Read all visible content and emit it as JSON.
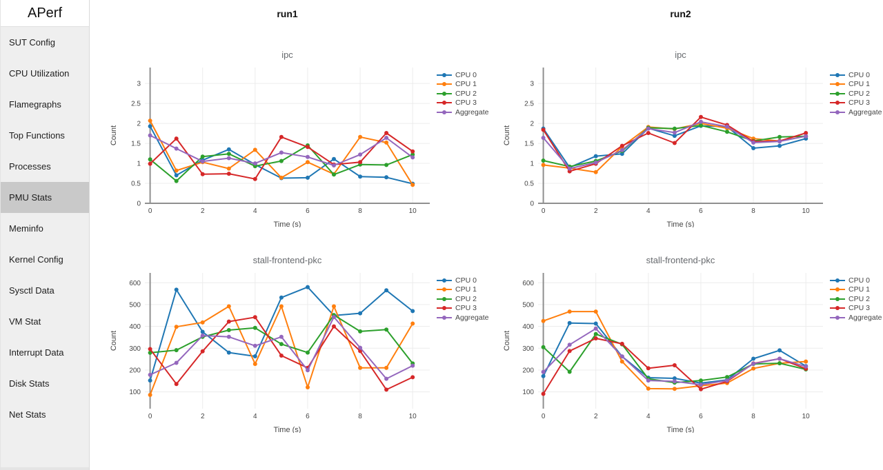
{
  "app": {
    "title": "APerf"
  },
  "sidebar": {
    "items": [
      {
        "label": "SUT Config",
        "selected": false
      },
      {
        "label": "CPU Utilization",
        "selected": false
      },
      {
        "label": "Flamegraphs",
        "selected": false
      },
      {
        "label": "Top Functions",
        "selected": false
      },
      {
        "label": "Processes",
        "selected": false
      },
      {
        "label": "PMU Stats",
        "selected": true
      },
      {
        "label": "Meminfo",
        "selected": false
      },
      {
        "label": "Kernel Config",
        "selected": false
      },
      {
        "label": "Sysctl Data",
        "selected": false
      },
      {
        "label": "VM Stat",
        "selected": false
      },
      {
        "label": "Interrupt Data",
        "selected": false
      },
      {
        "label": "Disk Stats",
        "selected": false
      },
      {
        "label": "Net Stats",
        "selected": false
      }
    ]
  },
  "columns": [
    "run1",
    "run2"
  ],
  "palette": {
    "cpu0": "#1f77b4",
    "cpu1": "#ff7f0e",
    "cpu2": "#2ca02c",
    "cpu3": "#d62728",
    "aggregate": "#9467bd"
  },
  "chart_style": {
    "grid_color": "#ececec",
    "zeroline_color": "#8f8f8f",
    "tick_color": "#444444",
    "title_color": "#66696d"
  },
  "chart_data": [
    {
      "type": "line",
      "run": "run1",
      "title": "ipc",
      "xlabel": "Time (s)",
      "ylabel": "Count",
      "x": [
        0,
        1,
        2,
        3,
        4,
        5,
        6,
        7,
        8,
        9,
        10
      ],
      "xticks": [
        0,
        2,
        4,
        6,
        8,
        10
      ],
      "yticks": [
        0,
        0.5,
        1,
        1.5,
        2,
        2.5,
        3
      ],
      "yrange": [
        0,
        3.4
      ],
      "x_zeroline": true,
      "y_zeroline": true,
      "legend_position": "right",
      "series": [
        {
          "name": "CPU 0",
          "color": "#1f77b4",
          "values": [
            1.93,
            0.7,
            1.08,
            1.35,
            0.97,
            0.63,
            0.64,
            1.11,
            0.67,
            0.65,
            0.49
          ]
        },
        {
          "name": "CPU 1",
          "color": "#ff7f0e",
          "values": [
            2.07,
            0.82,
            1.03,
            0.87,
            1.34,
            0.64,
            1.03,
            0.73,
            1.66,
            1.52,
            0.46
          ]
        },
        {
          "name": "CPU 2",
          "color": "#2ca02c",
          "values": [
            1.1,
            0.56,
            1.17,
            1.24,
            0.93,
            1.06,
            1.45,
            0.72,
            0.97,
            0.96,
            1.22
          ]
        },
        {
          "name": "CPU 3",
          "color": "#d62728",
          "values": [
            0.99,
            1.62,
            0.73,
            0.74,
            0.61,
            1.66,
            1.41,
            0.97,
            1.03,
            1.76,
            1.3
          ]
        },
        {
          "name": "Aggregate",
          "color": "#9467bd",
          "values": [
            1.7,
            1.37,
            1.05,
            1.13,
            1.0,
            1.27,
            1.16,
            0.95,
            1.22,
            1.64,
            1.15
          ]
        }
      ]
    },
    {
      "type": "line",
      "run": "run2",
      "title": "ipc",
      "xlabel": "Time (s)",
      "ylabel": "Count",
      "x": [
        0,
        1,
        2,
        3,
        4,
        5,
        6,
        7,
        8,
        9,
        10
      ],
      "xticks": [
        0,
        2,
        4,
        6,
        8,
        10
      ],
      "yticks": [
        0,
        0.5,
        1,
        1.5,
        2,
        2.5,
        3
      ],
      "yrange": [
        0,
        3.4
      ],
      "x_zeroline": true,
      "y_zeroline": true,
      "legend_position": "right",
      "series": [
        {
          "name": "CPU 0",
          "color": "#1f77b4",
          "values": [
            1.87,
            0.9,
            1.18,
            1.24,
            1.88,
            1.69,
            1.94,
            1.92,
            1.38,
            1.44,
            1.62
          ]
        },
        {
          "name": "CPU 1",
          "color": "#ff7f0e",
          "values": [
            0.96,
            0.88,
            0.78,
            1.42,
            1.91,
            1.86,
            2.0,
            1.88,
            1.62,
            1.56,
            1.68
          ]
        },
        {
          "name": "CPU 2",
          "color": "#2ca02c",
          "values": [
            1.07,
            0.92,
            1.06,
            1.31,
            1.89,
            1.87,
            1.95,
            1.79,
            1.56,
            1.66,
            1.68
          ]
        },
        {
          "name": "CPU 3",
          "color": "#d62728",
          "values": [
            1.84,
            0.8,
            0.99,
            1.44,
            1.76,
            1.51,
            2.16,
            1.96,
            1.55,
            1.56,
            1.76
          ]
        },
        {
          "name": "Aggregate",
          "color": "#9467bd",
          "values": [
            1.64,
            0.87,
            1.02,
            1.33,
            1.87,
            1.77,
            2.04,
            1.92,
            1.52,
            1.55,
            1.68
          ]
        }
      ]
    },
    {
      "type": "line",
      "run": "run1",
      "title": "stall-frontend-pkc",
      "xlabel": "Time (s)",
      "ylabel": "Count",
      "x": [
        0,
        1,
        2,
        3,
        4,
        5,
        6,
        7,
        8,
        9,
        10
      ],
      "xticks": [
        0,
        2,
        4,
        6,
        8,
        10
      ],
      "yticks": [
        100,
        200,
        300,
        400,
        500,
        600
      ],
      "yrange": [
        23,
        645
      ],
      "x_zeroline": true,
      "y_zeroline": false,
      "legend_position": "right",
      "series": [
        {
          "name": "CPU 0",
          "color": "#1f77b4",
          "values": [
            152,
            568,
            375,
            280,
            263,
            532,
            580,
            450,
            460,
            565,
            470
          ]
        },
        {
          "name": "CPU 1",
          "color": "#ff7f0e",
          "values": [
            86,
            398,
            418,
            492,
            228,
            492,
            121,
            492,
            210,
            210,
            413
          ]
        },
        {
          "name": "CPU 2",
          "color": "#2ca02c",
          "values": [
            279,
            291,
            352,
            383,
            393,
            319,
            280,
            452,
            377,
            385,
            230
          ]
        },
        {
          "name": "CPU 3",
          "color": "#d62728",
          "values": [
            296,
            136,
            286,
            422,
            442,
            266,
            210,
            400,
            287,
            110,
            167
          ]
        },
        {
          "name": "Aggregate",
          "color": "#9467bd",
          "values": [
            178,
            233,
            358,
            352,
            311,
            352,
            199,
            443,
            302,
            160,
            220
          ]
        }
      ]
    },
    {
      "type": "line",
      "run": "run2",
      "title": "stall-frontend-pkc",
      "xlabel": "Time (s)",
      "ylabel": "Count",
      "x": [
        0,
        1,
        2,
        3,
        4,
        5,
        6,
        7,
        8,
        9,
        10
      ],
      "xticks": [
        0,
        2,
        4,
        6,
        8,
        10
      ],
      "yticks": [
        100,
        200,
        300,
        400,
        500,
        600
      ],
      "yrange": [
        23,
        645
      ],
      "x_zeroline": true,
      "y_zeroline": false,
      "legend_position": "right",
      "series": [
        {
          "name": "CPU 0",
          "color": "#1f77b4",
          "values": [
            172,
            415,
            413,
            262,
            165,
            162,
            140,
            155,
            252,
            290,
            218
          ]
        },
        {
          "name": "CPU 1",
          "color": "#ff7f0e",
          "values": [
            425,
            468,
            468,
            239,
            115,
            114,
            128,
            140,
            207,
            231,
            239
          ]
        },
        {
          "name": "CPU 2",
          "color": "#2ca02c",
          "values": [
            305,
            192,
            365,
            318,
            160,
            142,
            152,
            168,
            228,
            231,
            203
          ]
        },
        {
          "name": "CPU 3",
          "color": "#d62728",
          "values": [
            91,
            287,
            345,
            320,
            208,
            222,
            112,
            148,
            230,
            252,
            206
          ]
        },
        {
          "name": "Aggregate",
          "color": "#9467bd",
          "values": [
            191,
            316,
            390,
            262,
            152,
            148,
            133,
            152,
            229,
            252,
            216
          ]
        }
      ]
    }
  ]
}
